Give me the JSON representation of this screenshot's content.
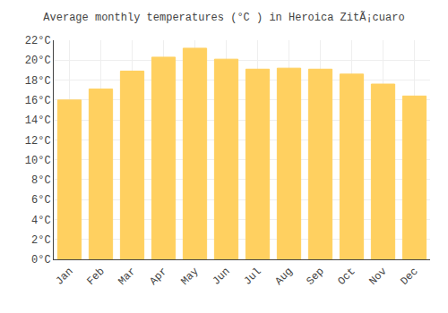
{
  "chart_data": {
    "type": "bar",
    "title": "Average monthly temperatures (°C ) in Heroica ZitÃ¡cuaro",
    "categories": [
      "Jan",
      "Feb",
      "Mar",
      "Apr",
      "May",
      "Jun",
      "Jul",
      "Aug",
      "Sep",
      "Oct",
      "Nov",
      "Dec"
    ],
    "values": [
      16.0,
      17.1,
      18.9,
      20.3,
      21.2,
      20.1,
      19.1,
      19.2,
      19.1,
      18.6,
      17.6,
      16.4
    ],
    "color": "#FFD060",
    "ylim": [
      0,
      22
    ],
    "yticks": [
      {
        "value": 0,
        "label": "0°C"
      },
      {
        "value": 2,
        "label": "2°C"
      },
      {
        "value": 4,
        "label": "4°C"
      },
      {
        "value": 6,
        "label": "6°C"
      },
      {
        "value": 8,
        "label": "8°C"
      },
      {
        "value": 10,
        "label": "10°C"
      },
      {
        "value": 12,
        "label": "12°C"
      },
      {
        "value": 14,
        "label": "14°C"
      },
      {
        "value": 16,
        "label": "16°C"
      },
      {
        "value": 18,
        "label": "18°C"
      },
      {
        "value": 20,
        "label": "20°C"
      },
      {
        "value": 22,
        "label": "22°C"
      }
    ],
    "grid": true
  }
}
